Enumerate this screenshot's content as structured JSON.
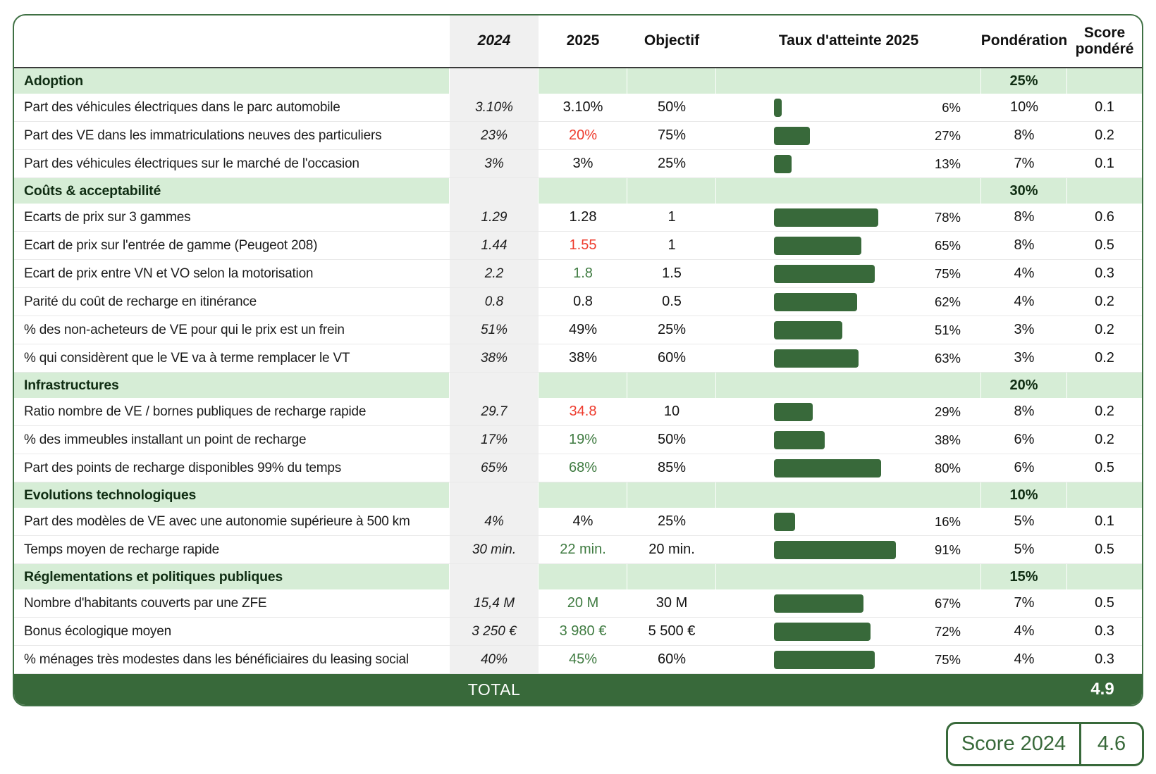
{
  "colors": {
    "dark_green": "#38693a",
    "border_green": "#3f7044",
    "section_bg": "#d6edd6",
    "col2024_bg": "#f0f0f0",
    "negative_red": "#ee3b2d",
    "positive_green": "#3f7b41"
  },
  "table": {
    "columns": [
      "",
      "2024",
      "2025",
      "Objectif",
      "Taux d'atteinte 2025",
      "Pondération",
      "Score pondéré"
    ],
    "sections": [
      {
        "label": "Adoption",
        "weight": "25%",
        "rows": [
          {
            "label": "Part des véhicules électriques dans le parc automobile",
            "v2024": "3.10%",
            "v2025": "3.10%",
            "v2025_color": "black",
            "objectif": "50%",
            "taux_pct": 6,
            "taux_label": "6%",
            "ponderation": "10%",
            "score": "0.1"
          },
          {
            "label": "Part des VE dans les immatriculations neuves des particuliers",
            "v2024": "23%",
            "v2025": "20%",
            "v2025_color": "red",
            "objectif": "75%",
            "taux_pct": 27,
            "taux_label": "27%",
            "ponderation": "8%",
            "score": "0.2"
          },
          {
            "label": "Part des véhicules électriques sur le marché de l'occasion",
            "v2024": "3%",
            "v2025": "3%",
            "v2025_color": "black",
            "objectif": "25%",
            "taux_pct": 13,
            "taux_label": "13%",
            "ponderation": "7%",
            "score": "0.1"
          }
        ]
      },
      {
        "label": "Coûts & acceptabilité",
        "weight": "30%",
        "rows": [
          {
            "label": "Ecarts de prix sur 3 gammes",
            "v2024": "1.29",
            "v2025": "1.28",
            "v2025_color": "black",
            "objectif": "1",
            "taux_pct": 78,
            "taux_label": "78%",
            "ponderation": "8%",
            "score": "0.6"
          },
          {
            "label": "Ecart de prix sur l'entrée de gamme (Peugeot 208)",
            "v2024": "1.44",
            "v2025": "1.55",
            "v2025_color": "red",
            "objectif": "1",
            "taux_pct": 65,
            "taux_label": "65%",
            "ponderation": "8%",
            "score": "0.5"
          },
          {
            "label": "Ecart de prix entre VN et VO selon la motorisation",
            "v2024": "2.2",
            "v2025": "1.8",
            "v2025_color": "green",
            "objectif": "1.5",
            "taux_pct": 75,
            "taux_label": "75%",
            "ponderation": "4%",
            "score": "0.3"
          },
          {
            "label": "Parité du coût de recharge en itinérance",
            "v2024": "0.8",
            "v2025": "0.8",
            "v2025_color": "black",
            "objectif": "0.5",
            "taux_pct": 62,
            "taux_label": "62%",
            "ponderation": "4%",
            "score": "0.2"
          },
          {
            "label": "% des non-acheteurs de VE pour qui le prix est un frein",
            "v2024": "51%",
            "v2025": "49%",
            "v2025_color": "black",
            "objectif": "25%",
            "taux_pct": 51,
            "taux_label": "51%",
            "ponderation": "3%",
            "score": "0.2"
          },
          {
            "label": "% qui considèrent que le VE va à terme remplacer le VT",
            "v2024": "38%",
            "v2025": "38%",
            "v2025_color": "black",
            "objectif": "60%",
            "taux_pct": 63,
            "taux_label": "63%",
            "ponderation": "3%",
            "score": "0.2"
          }
        ]
      },
      {
        "label": "Infrastructures",
        "weight": "20%",
        "rows": [
          {
            "label": "Ratio nombre de VE / bornes publiques de recharge rapide",
            "v2024": "29.7",
            "v2025": "34.8",
            "v2025_color": "red",
            "objectif": "10",
            "taux_pct": 29,
            "taux_label": "29%",
            "ponderation": "8%",
            "score": "0.2"
          },
          {
            "label": "%  des immeubles installant un point de recharge",
            "v2024": "17%",
            "v2025": "19%",
            "v2025_color": "green",
            "objectif": "50%",
            "taux_pct": 38,
            "taux_label": "38%",
            "ponderation": "6%",
            "score": "0.2"
          },
          {
            "label": "Part des points de recharge disponibles 99% du temps",
            "v2024": "65%",
            "v2025": "68%",
            "v2025_color": "green",
            "objectif": "85%",
            "taux_pct": 80,
            "taux_label": "80%",
            "ponderation": "6%",
            "score": "0.5"
          }
        ]
      },
      {
        "label": "Evolutions technologiques",
        "weight": "10%",
        "rows": [
          {
            "label": "Part des modèles de VE avec une autonomie supérieure à 500 km",
            "v2024": "4%",
            "v2025": "4%",
            "v2025_color": "black",
            "objectif": "25%",
            "taux_pct": 16,
            "taux_label": "16%",
            "ponderation": "5%",
            "score": "0.1"
          },
          {
            "label": "Temps moyen de recharge rapide",
            "v2024": "30 min.",
            "v2025": "22 min.",
            "v2025_color": "green",
            "objectif": "20 min.",
            "taux_pct": 91,
            "taux_label": "91%",
            "ponderation": "5%",
            "score": "0.5"
          }
        ]
      },
      {
        "label": "Réglementations et politiques publiques",
        "weight": "15%",
        "rows": [
          {
            "label": "Nombre d'habitants couverts par une ZFE",
            "v2024": "15,4 M",
            "v2025": "20 M",
            "v2025_color": "green",
            "objectif": "30 M",
            "taux_pct": 67,
            "taux_label": "67%",
            "ponderation": "7%",
            "score": "0.5"
          },
          {
            "label": "Bonus écologique moyen",
            "v2024": "3 250 €",
            "v2025": "3 980 €",
            "v2025_color": "green",
            "objectif": "5 500 €",
            "taux_pct": 72,
            "taux_label": "72%",
            "ponderation": "4%",
            "score": "0.3"
          },
          {
            "label": "% ménages très modestes dans les bénéficiaires du leasing social",
            "v2024": "40%",
            "v2025": "45%",
            "v2025_color": "green",
            "objectif": "60%",
            "taux_pct": 75,
            "taux_label": "75%",
            "ponderation": "4%",
            "score": "0.3"
          }
        ]
      }
    ],
    "total_label": "TOTAL",
    "total_score": "4.9"
  },
  "score_2024": {
    "label": "Score 2024",
    "value": "4.6"
  }
}
